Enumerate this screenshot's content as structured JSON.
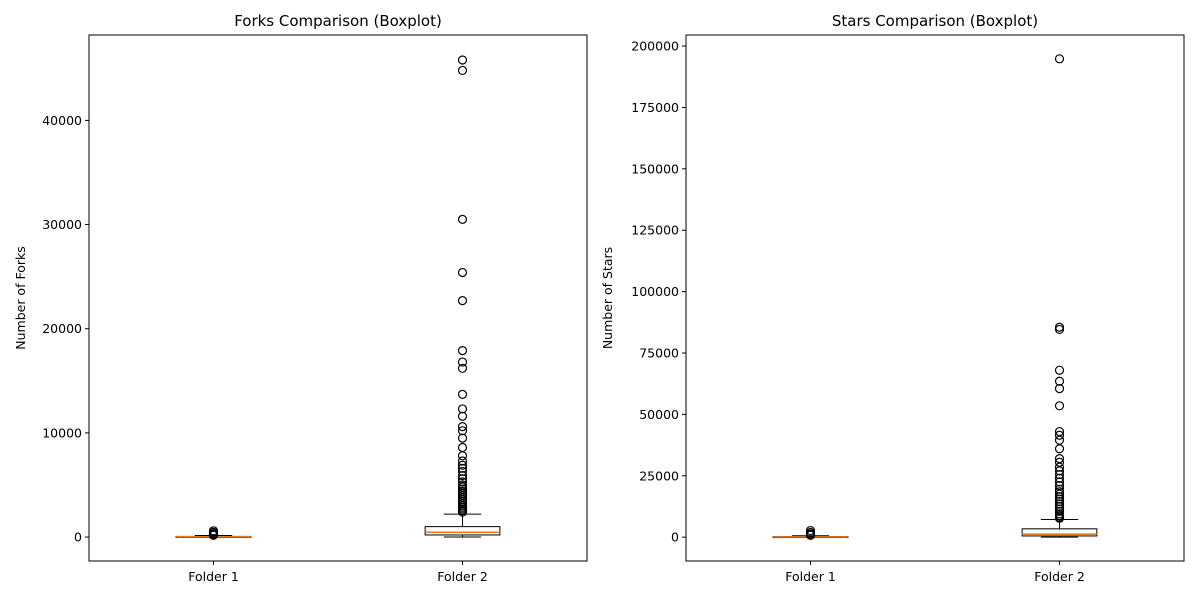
{
  "chart_data": [
    {
      "type": "boxplot",
      "title": "Forks Comparison (Boxplot)",
      "xlabel": "",
      "ylabel": "Number of Forks",
      "ylim": [
        -2300,
        48200
      ],
      "yticks": [
        0,
        10000,
        20000,
        30000,
        40000
      ],
      "ytick_labels": [
        "0",
        "10000",
        "20000",
        "30000",
        "40000"
      ],
      "categories": [
        "Folder 1",
        "Folder 2"
      ],
      "boxes": [
        {
          "category": "Folder 1",
          "whisker_low": 0,
          "q1": 5,
          "median": 20,
          "q3": 60,
          "whisker_high": 150,
          "outliers": [
            600,
            450,
            320,
            250,
            200,
            170
          ]
        },
        {
          "category": "Folder 2",
          "whisker_low": 0,
          "q1": 200,
          "median": 450,
          "q3": 1000,
          "whisker_high": 2200,
          "outliers": [
            45800,
            44800,
            30500,
            25400,
            22700,
            17900,
            16800,
            16200,
            13700,
            12300,
            11600,
            10600,
            10200,
            9500,
            8600,
            7800,
            7300,
            6900,
            6600,
            6300,
            5900,
            5600,
            5300,
            5000,
            4800,
            4600,
            4400,
            4200,
            4000,
            3800,
            3600,
            3400,
            3200,
            3000,
            2850,
            2700,
            2550,
            2400
          ]
        }
      ]
    },
    {
      "type": "boxplot",
      "title": "Stars Comparison (Boxplot)",
      "xlabel": "",
      "ylabel": "Number of Stars",
      "ylim": [
        -9700,
        204500
      ],
      "yticks": [
        0,
        25000,
        50000,
        75000,
        100000,
        125000,
        150000,
        175000,
        200000
      ],
      "ytick_labels": [
        "0",
        "25000",
        "50000",
        "75000",
        "100000",
        "125000",
        "150000",
        "175000",
        "200000"
      ],
      "categories": [
        "Folder 1",
        "Folder 2"
      ],
      "boxes": [
        {
          "category": "Folder 1",
          "whisker_low": 0,
          "q1": 20,
          "median": 80,
          "q3": 250,
          "whisker_high": 600,
          "outliers": [
            2700,
            1900,
            1300,
            1000,
            800
          ]
        },
        {
          "category": "Folder 2",
          "whisker_low": 0,
          "q1": 500,
          "median": 1200,
          "q3": 3400,
          "whisker_high": 7200,
          "outliers": [
            194800,
            85500,
            84600,
            68000,
            63500,
            60500,
            53500,
            43000,
            41500,
            39500,
            36000,
            32000,
            30500,
            28500,
            27000,
            25500,
            24000,
            22500,
            21000,
            19500,
            18500,
            17500,
            16500,
            15500,
            14500,
            13500,
            12500,
            11500,
            10500,
            9500,
            8800,
            8200,
            7700
          ]
        }
      ]
    }
  ]
}
